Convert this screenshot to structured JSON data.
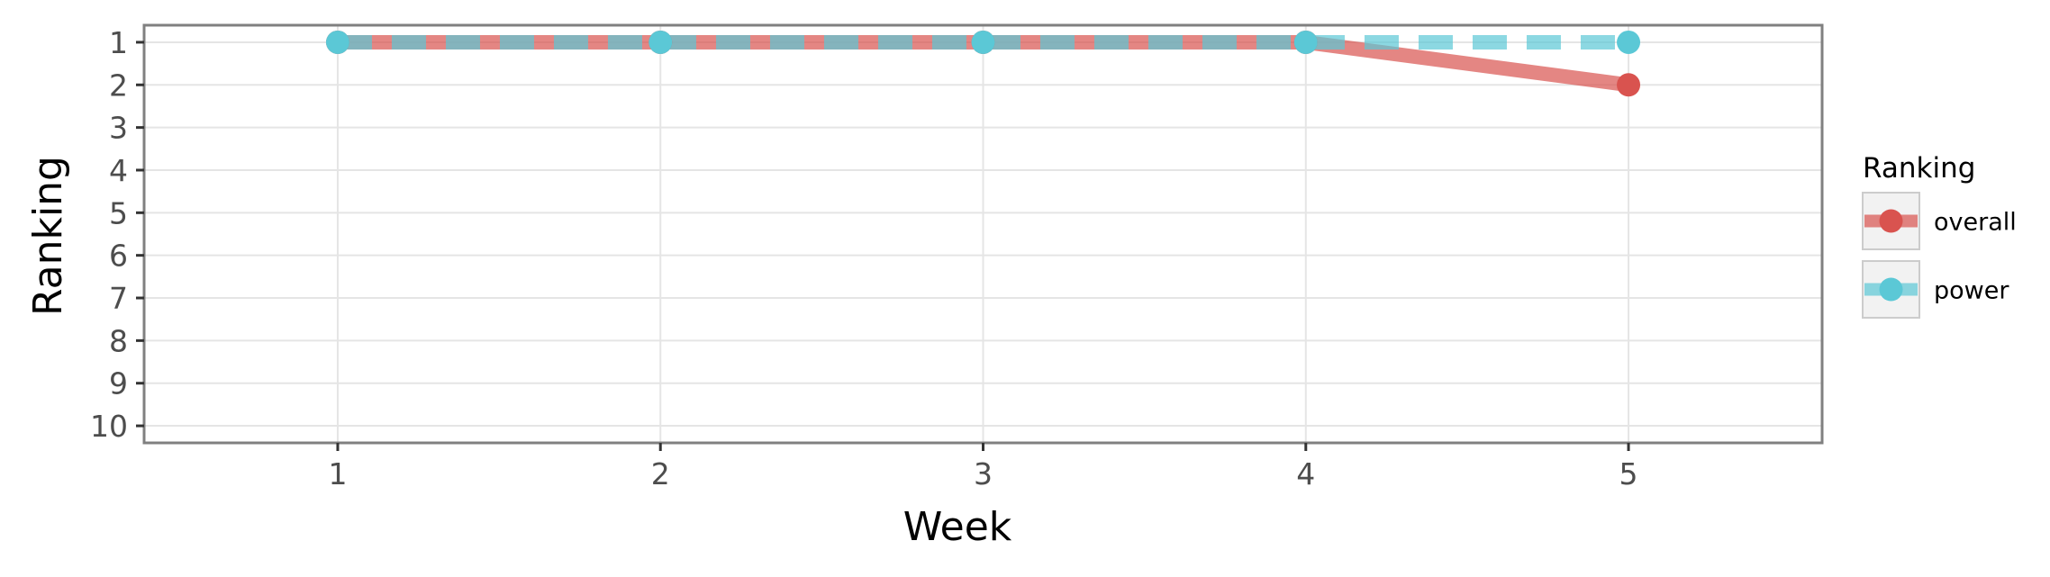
{
  "chart_data": {
    "type": "line",
    "xlabel": "Week",
    "ylabel": "Ranking",
    "x": [
      1,
      2,
      3,
      4,
      5
    ],
    "xlim": [
      0.4,
      5.6
    ],
    "ylim": [
      10.4,
      0.6
    ],
    "y_reversed": true,
    "xticks": [
      1,
      2,
      3,
      4,
      5
    ],
    "yticks": [
      1,
      2,
      3,
      4,
      5,
      6,
      7,
      8,
      9,
      10
    ],
    "grid": true,
    "legend": {
      "title": "Ranking",
      "position": "right"
    },
    "series": [
      {
        "name": "overall",
        "values": [
          1,
          1,
          1,
          1,
          2
        ],
        "color": "#d9534f",
        "line_style": "solid"
      },
      {
        "name": "power",
        "values": [
          1,
          1,
          1,
          1,
          1
        ],
        "color": "#5bc8d6",
        "line_style": "dashed"
      }
    ]
  }
}
